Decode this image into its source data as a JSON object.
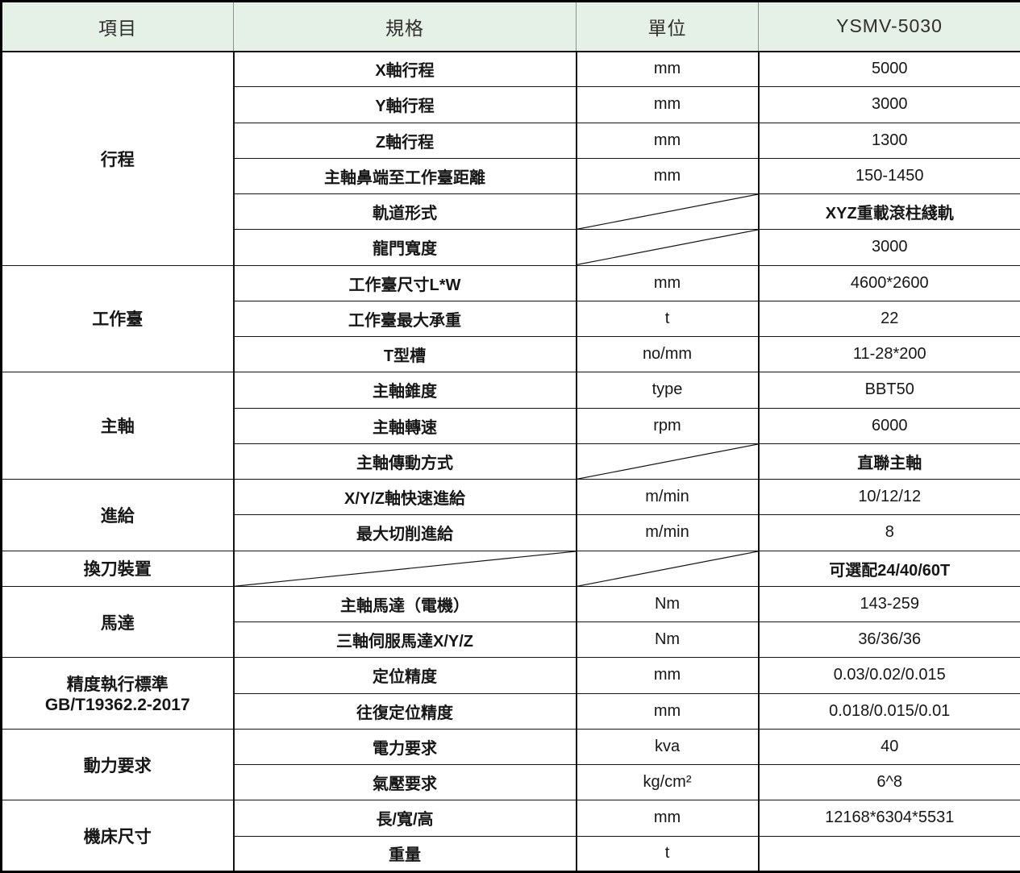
{
  "table": {
    "columns": [
      "項目",
      "規格",
      "單位",
      "YSMV-5030"
    ],
    "colors": {
      "header_bg": "#e5f0e6",
      "border": "#141414",
      "text": "#161616"
    },
    "groups": [
      {
        "label": [
          "行程"
        ],
        "rows": [
          {
            "spec": "X軸行程",
            "unit": "mm",
            "value": "5000"
          },
          {
            "spec": "Y軸行程",
            "unit": "mm",
            "value": "3000"
          },
          {
            "spec": "Z軸行程",
            "unit": "mm",
            "value": "1300"
          },
          {
            "spec": "主軸鼻端至工作臺距離",
            "unit": "mm",
            "value": "150-1450"
          },
          {
            "spec": "軌道形式",
            "unit_diagonal": true,
            "value": "XYZ重載滾柱綫軌"
          },
          {
            "spec": "龍門寬度",
            "unit_diagonal": true,
            "value": "3000"
          }
        ]
      },
      {
        "label": [
          "工作臺"
        ],
        "rows": [
          {
            "spec": "工作臺尺寸L*W",
            "unit": "mm",
            "value": "4600*2600"
          },
          {
            "spec": "工作臺最大承重",
            "unit": "t",
            "value": "22"
          },
          {
            "spec": "T型槽",
            "unit": "no/mm",
            "value": "11-28*200"
          }
        ]
      },
      {
        "label": [
          "主軸"
        ],
        "rows": [
          {
            "spec": "主軸錐度",
            "unit": "type",
            "value": "BBT50"
          },
          {
            "spec": "主軸轉速",
            "unit": "rpm",
            "value": "6000"
          },
          {
            "spec": "主軸傳動方式",
            "unit_diagonal": true,
            "value": "直聯主軸"
          }
        ]
      },
      {
        "label": [
          "進給"
        ],
        "rows": [
          {
            "spec": "X/Y/Z軸快速進給",
            "unit": "m/min",
            "value": "10/12/12"
          },
          {
            "spec": "最大切削進給",
            "unit": "m/min",
            "value": "8"
          }
        ]
      },
      {
        "label": [
          "換刀裝置"
        ],
        "rows": [
          {
            "spec_diagonal": true,
            "unit_diagonal": true,
            "value": "可選配24/40/60T"
          }
        ]
      },
      {
        "label": [
          "馬達"
        ],
        "rows": [
          {
            "spec": "主軸馬達（電機）",
            "unit": "Nm",
            "value": "143-259"
          },
          {
            "spec": "三軸伺服馬達X/Y/Z",
            "unit": "Nm",
            "value": "36/36/36"
          }
        ]
      },
      {
        "label": [
          "精度執行標準",
          "GB/T19362.2-2017"
        ],
        "rows": [
          {
            "spec": "定位精度",
            "unit": "mm",
            "value": "0.03/0.02/0.015"
          },
          {
            "spec": "往復定位精度",
            "unit": "mm",
            "value": "0.018/0.015/0.01"
          }
        ]
      },
      {
        "label": [
          "動力要求"
        ],
        "rows": [
          {
            "spec": "電力要求",
            "unit": "kva",
            "value": "40"
          },
          {
            "spec": "氣壓要求",
            "unit": "kg/cm²",
            "value": "6^8"
          }
        ]
      },
      {
        "label": [
          "機床尺寸"
        ],
        "rows": [
          {
            "spec": "長/寬/高",
            "unit": "mm",
            "value": "12168*6304*5531"
          },
          {
            "spec": "重量",
            "unit": "t",
            "value": ""
          }
        ]
      }
    ]
  }
}
